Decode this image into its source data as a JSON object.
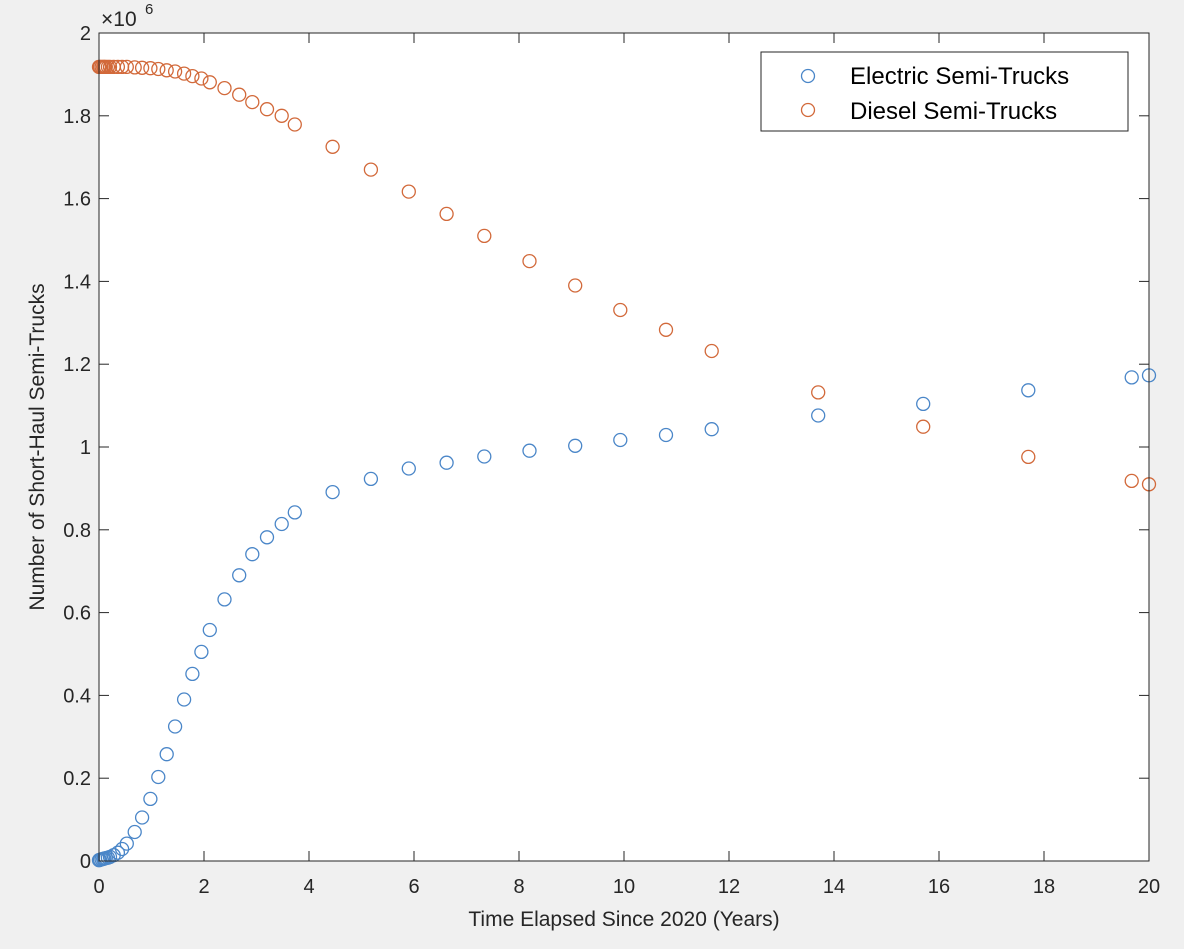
{
  "colors": {
    "background": "#f0f0f0",
    "plot_area": "#ffffff",
    "axes": "#262626",
    "electric": "#4a86c8",
    "diesel": "#d2693a"
  },
  "chart_data": {
    "type": "scatter",
    "title": "",
    "xlabel": "Time Elapsed Since 2020 (Years)",
    "ylabel": "Number of Short-Haul Semi-Trucks",
    "y_exponent_label": "×10",
    "y_exponent_power": "6",
    "xlim": [
      0,
      20
    ],
    "ylim": [
      0,
      2
    ],
    "grid": false,
    "legend_location": "top-right",
    "x_ticks": [
      0,
      2,
      4,
      6,
      8,
      10,
      12,
      14,
      16,
      18,
      20
    ],
    "x_tick_labels": [
      "0",
      "2",
      "4",
      "6",
      "8",
      "10",
      "12",
      "14",
      "16",
      "18",
      "20"
    ],
    "y_ticks": [
      0,
      0.2,
      0.4,
      0.6,
      0.8,
      1,
      1.2,
      1.4,
      1.6,
      1.8,
      2
    ],
    "y_tick_labels": [
      "0",
      "0.2",
      "0.4",
      "0.6",
      "0.8",
      "1",
      "1.2",
      "1.4",
      "1.6",
      "1.8",
      "2"
    ],
    "series": [
      {
        "name": "Electric Semi-Trucks",
        "marker": "circle-open",
        "color": "#4a86c8",
        "points": [
          [
            0,
            0.002
          ],
          [
            0.02,
            0.003
          ],
          [
            0.05,
            0.004
          ],
          [
            0.08,
            0.005
          ],
          [
            0.1,
            0.006
          ],
          [
            0.13,
            0.007
          ],
          [
            0.17,
            0.008
          ],
          [
            0.21,
            0.01
          ],
          [
            0.28,
            0.014
          ],
          [
            0.36,
            0.02
          ],
          [
            0.44,
            0.029
          ],
          [
            0.53,
            0.042
          ],
          [
            0.68,
            0.07
          ],
          [
            0.82,
            0.105
          ],
          [
            0.98,
            0.15
          ],
          [
            1.13,
            0.203
          ],
          [
            1.29,
            0.258
          ],
          [
            1.45,
            0.325
          ],
          [
            1.62,
            0.39
          ],
          [
            1.78,
            0.452
          ],
          [
            1.95,
            0.505
          ],
          [
            2.11,
            0.558
          ],
          [
            2.39,
            0.632
          ],
          [
            2.67,
            0.69
          ],
          [
            2.92,
            0.741
          ],
          [
            3.2,
            0.782
          ],
          [
            3.48,
            0.814
          ],
          [
            3.73,
            0.842
          ],
          [
            4.45,
            0.891
          ],
          [
            5.18,
            0.923
          ],
          [
            5.9,
            0.948
          ],
          [
            6.62,
            0.962
          ],
          [
            7.34,
            0.977
          ],
          [
            8.2,
            0.991
          ],
          [
            9.07,
            1.003
          ],
          [
            9.93,
            1.017
          ],
          [
            10.8,
            1.029
          ],
          [
            11.67,
            1.043
          ],
          [
            13.7,
            1.076
          ],
          [
            15.7,
            1.104
          ],
          [
            17.7,
            1.137
          ],
          [
            19.67,
            1.168
          ],
          [
            20,
            1.173
          ]
        ]
      },
      {
        "name": "Diesel Semi-Trucks",
        "marker": "circle-open",
        "color": "#d2693a",
        "points": [
          [
            0,
            1.918
          ],
          [
            0.02,
            1.918
          ],
          [
            0.05,
            1.918
          ],
          [
            0.08,
            1.918
          ],
          [
            0.1,
            1.918
          ],
          [
            0.13,
            1.918
          ],
          [
            0.17,
            1.918
          ],
          [
            0.21,
            1.918
          ],
          [
            0.28,
            1.918
          ],
          [
            0.36,
            1.918
          ],
          [
            0.44,
            1.918
          ],
          [
            0.53,
            1.918
          ],
          [
            0.68,
            1.917
          ],
          [
            0.82,
            1.916
          ],
          [
            0.98,
            1.915
          ],
          [
            1.13,
            1.913
          ],
          [
            1.29,
            1.91
          ],
          [
            1.45,
            1.907
          ],
          [
            1.62,
            1.902
          ],
          [
            1.78,
            1.896
          ],
          [
            1.95,
            1.89
          ],
          [
            2.11,
            1.881
          ],
          [
            2.39,
            1.867
          ],
          [
            2.67,
            1.851
          ],
          [
            2.92,
            1.833
          ],
          [
            3.2,
            1.816
          ],
          [
            3.48,
            1.8
          ],
          [
            3.73,
            1.779
          ],
          [
            4.45,
            1.725
          ],
          [
            5.18,
            1.67
          ],
          [
            5.9,
            1.617
          ],
          [
            6.62,
            1.563
          ],
          [
            7.34,
            1.51
          ],
          [
            8.2,
            1.449
          ],
          [
            9.07,
            1.39
          ],
          [
            9.93,
            1.331
          ],
          [
            10.8,
            1.283
          ],
          [
            11.67,
            1.232
          ],
          [
            13.7,
            1.132
          ],
          [
            15.7,
            1.049
          ],
          [
            17.7,
            0.976
          ],
          [
            19.67,
            0.918
          ],
          [
            20,
            0.91
          ]
        ]
      }
    ]
  }
}
